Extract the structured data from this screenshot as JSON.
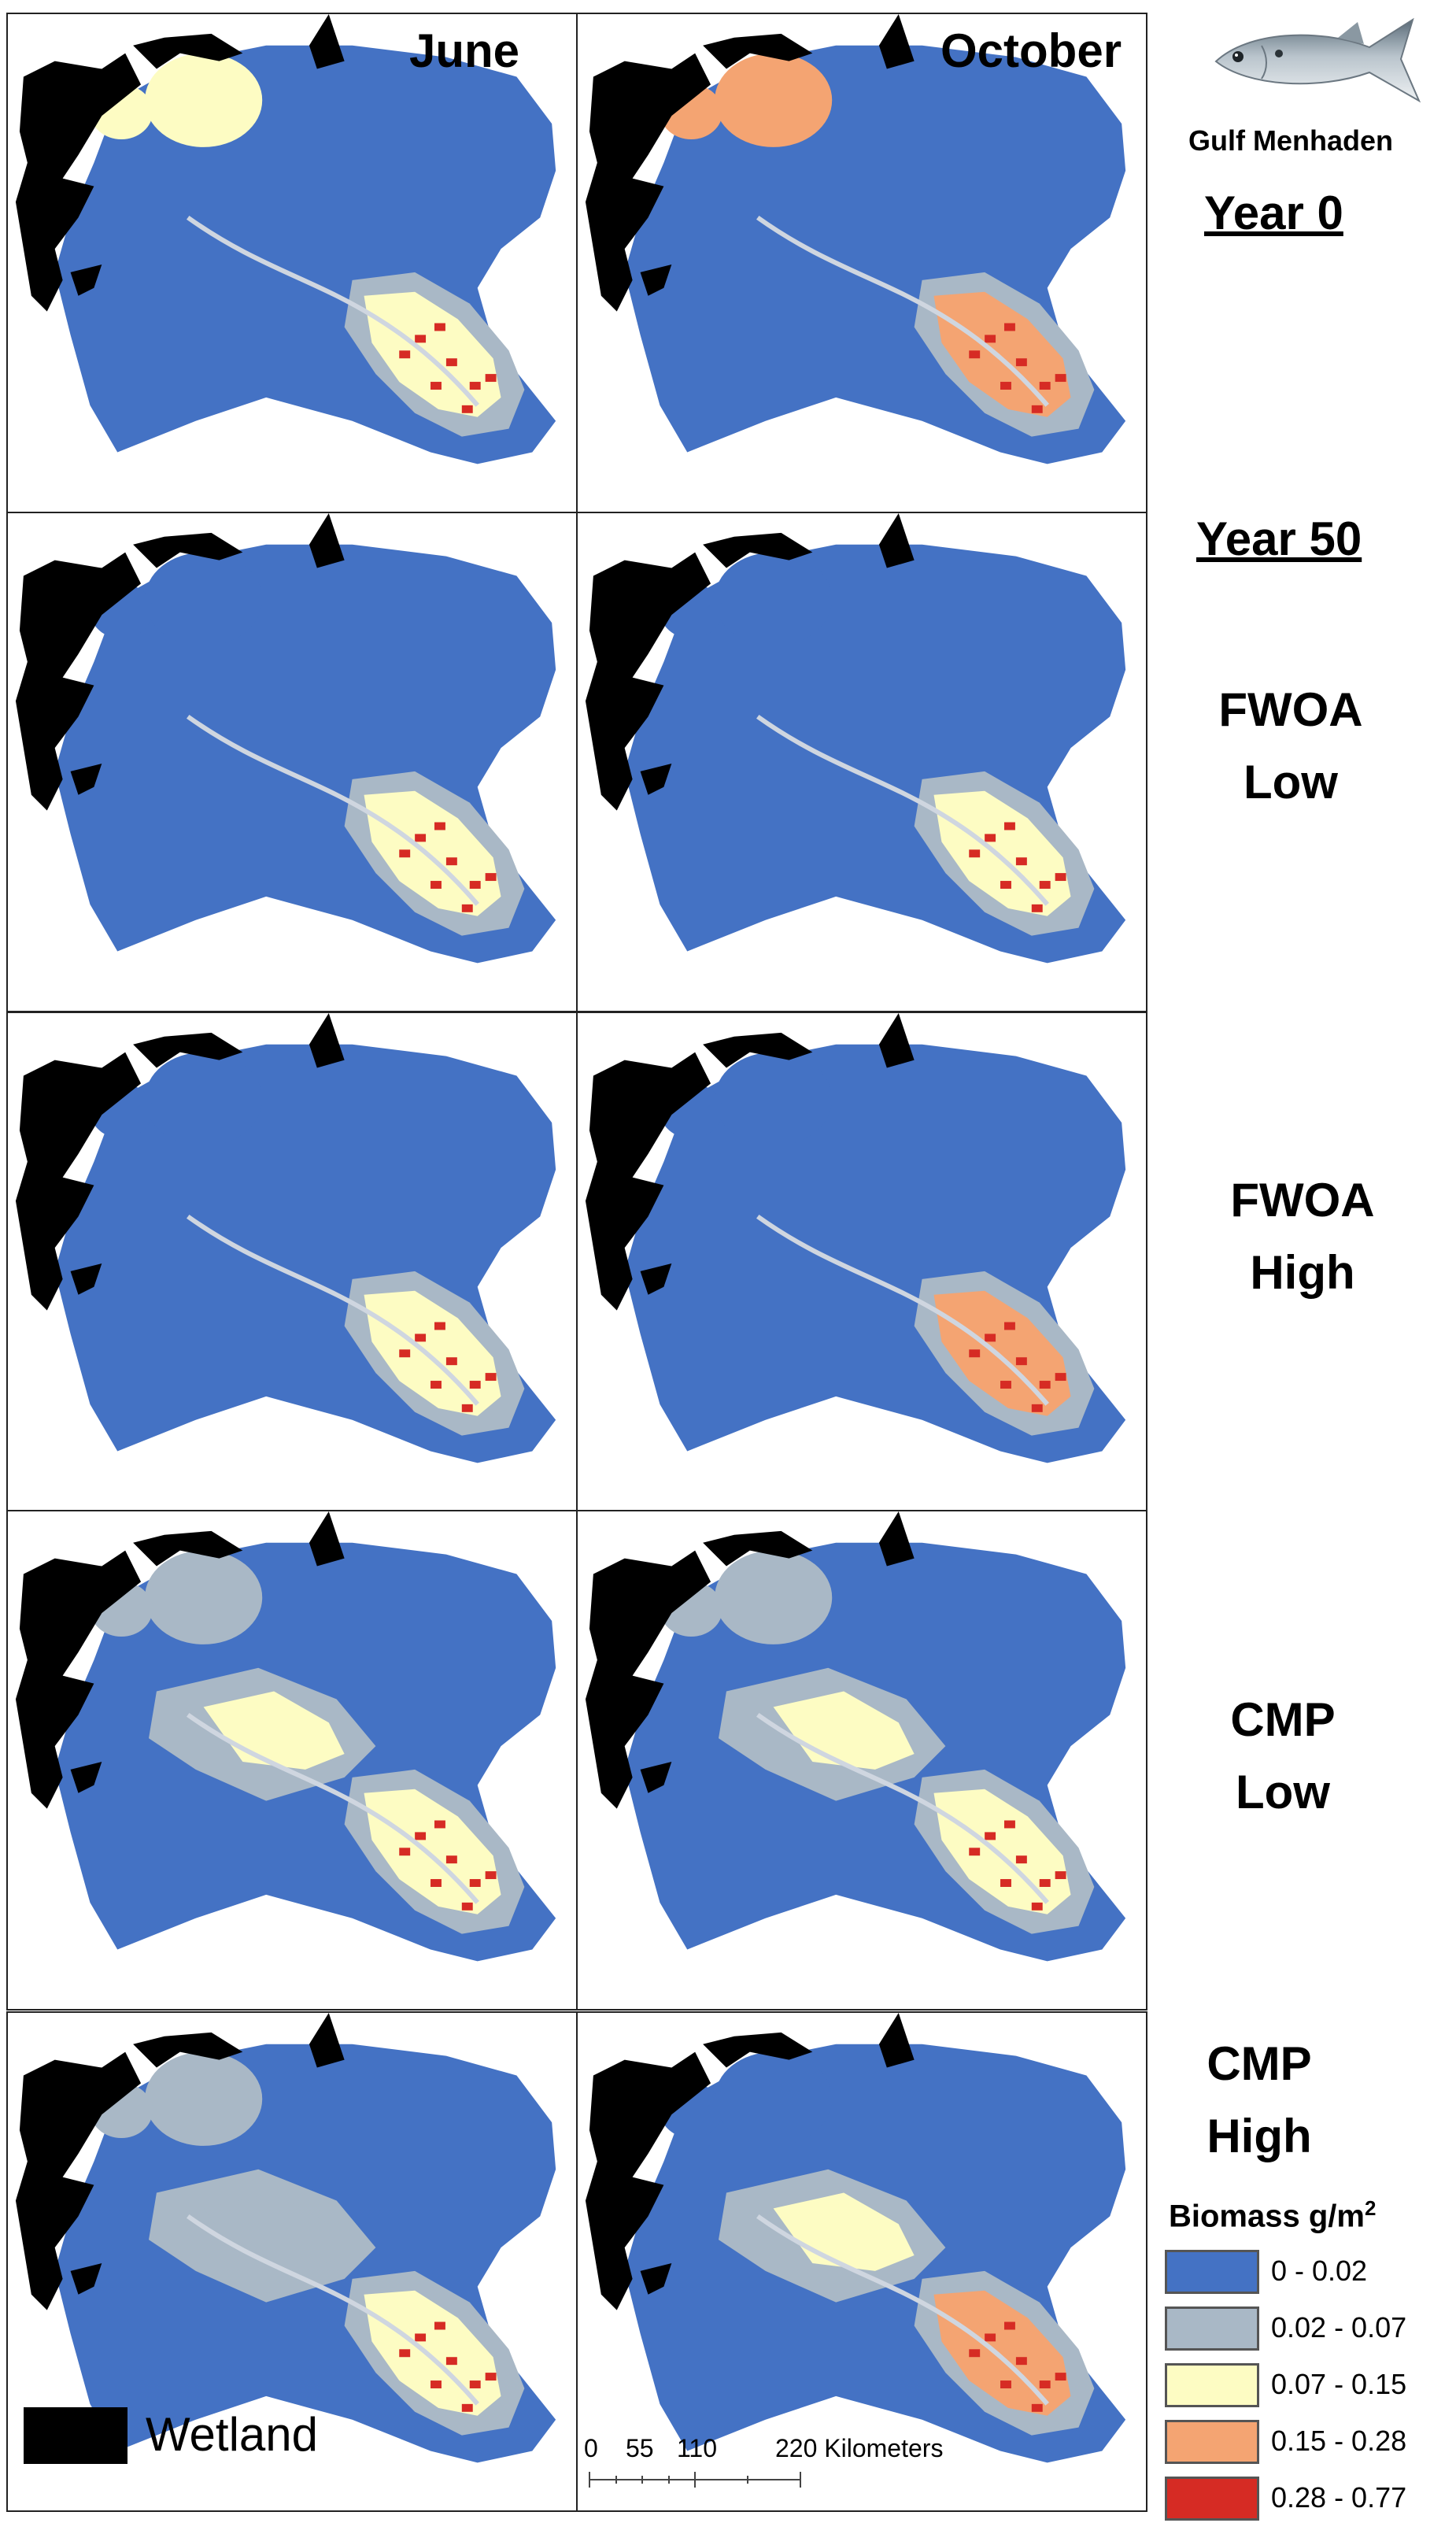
{
  "columns": {
    "june": "June",
    "october": "October"
  },
  "species": {
    "name": "Gulf Menhaden",
    "icon": "fish-icon"
  },
  "rows": [
    {
      "year": "Year 0",
      "line1": "",
      "line2": ""
    },
    {
      "year": "Year 50",
      "line1": "FWOA",
      "line2": "Low"
    },
    {
      "year": "",
      "line1": "FWOA",
      "line2": "High"
    },
    {
      "year": "",
      "line1": "CMP",
      "line2": "Low"
    },
    {
      "year": "",
      "line1": "CMP",
      "line2": "High"
    }
  ],
  "legend": {
    "title_text": "Biomass g/m",
    "title_sup": "2",
    "classes": [
      {
        "label": "0 - 0.02",
        "color": "#4472c4"
      },
      {
        "label": "0.02 - 0.07",
        "color": "#a9b8c6"
      },
      {
        "label": "0.07 - 0.15",
        "color": "#fdfcc3"
      },
      {
        "label": "0.15 - 0.28",
        "color": "#f4a472"
      },
      {
        "label": "0.28 - 0.77",
        "color": "#d62b24"
      }
    ]
  },
  "wetland": {
    "label": "Wetland",
    "color": "#000000"
  },
  "scalebar": {
    "ticks": [
      "0",
      "55",
      "110",
      "220 Kilometers"
    ]
  },
  "panels": [
    {
      "row": 0,
      "col": "june",
      "nw_lake": "#fdfcc3",
      "west_basin": "#fdfcc3",
      "plume": "#fdfcc3",
      "plume_halo": "#a9b8c6",
      "hotspots": "#d62b24",
      "mid_band": ""
    },
    {
      "row": 0,
      "col": "october",
      "nw_lake": "#f4a472",
      "west_basin": "#f4a472",
      "plume": "#f4a472",
      "plume_halo": "#a9b8c6",
      "hotspots": "#d62b24",
      "mid_band": ""
    },
    {
      "row": 1,
      "col": "june",
      "nw_lake": "#4472c4",
      "west_basin": "#4472c4",
      "plume": "#fdfcc3",
      "plume_halo": "#a9b8c6",
      "hotspots": "#d62b24",
      "mid_band": ""
    },
    {
      "row": 1,
      "col": "october",
      "nw_lake": "#4472c4",
      "west_basin": "#4472c4",
      "plume": "#fdfcc3",
      "plume_halo": "#a9b8c6",
      "hotspots": "#d62b24",
      "mid_band": ""
    },
    {
      "row": 2,
      "col": "june",
      "nw_lake": "#4472c4",
      "west_basin": "#4472c4",
      "plume": "#fdfcc3",
      "plume_halo": "#a9b8c6",
      "hotspots": "#d62b24",
      "mid_band": ""
    },
    {
      "row": 2,
      "col": "october",
      "nw_lake": "#4472c4",
      "west_basin": "#4472c4",
      "plume": "#f4a472",
      "plume_halo": "#a9b8c6",
      "hotspots": "#d62b24",
      "mid_band": ""
    },
    {
      "row": 3,
      "col": "june",
      "nw_lake": "#a9b8c6",
      "west_basin": "#a9b8c6",
      "plume": "#fdfcc3",
      "plume_halo": "#a9b8c6",
      "hotspots": "#d62b24",
      "mid_band": "#fdfcc3"
    },
    {
      "row": 3,
      "col": "october",
      "nw_lake": "#a9b8c6",
      "west_basin": "#a9b8c6",
      "plume": "#fdfcc3",
      "plume_halo": "#a9b8c6",
      "hotspots": "#d62b24",
      "mid_band": "#fdfcc3"
    },
    {
      "row": 4,
      "col": "june",
      "nw_lake": "#a9b8c6",
      "west_basin": "#a9b8c6",
      "plume": "#fdfcc3",
      "plume_halo": "#a9b8c6",
      "hotspots": "#d62b24",
      "mid_band": "#a9b8c6"
    },
    {
      "row": 4,
      "col": "october",
      "nw_lake": "#4472c4",
      "west_basin": "#4472c4",
      "plume": "#f4a472",
      "plume_halo": "#a9b8c6",
      "hotspots": "#d62b24",
      "mid_band": "#fdfcc3"
    }
  ]
}
